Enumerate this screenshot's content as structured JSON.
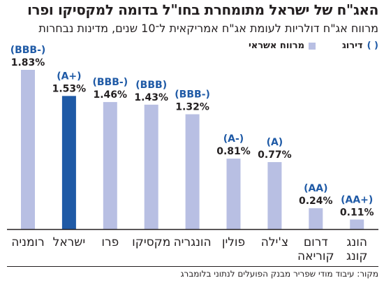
{
  "title": "האג\"ח של ישראל מתומחרת בחו\"ל בדומה למקסיקו ופרו",
  "subtitle": "מרווח אג\"ח דולריות לעומת אג\"ח אמריקאית ל־10 שנים, מדינות נבחרות",
  "legend": {
    "rating_paren": "( )",
    "rating_label": "דירוג",
    "spread_label": "מרווח אשראי"
  },
  "source": "מקור: עיבוד מודי שפריר מבנק הפועלים לנתוני בלומברג",
  "colors": {
    "bar": "#b8bfe3",
    "highlight": "#1f5aa6",
    "rating_text": "#1f5aa6",
    "text": "#231f20",
    "axis": "#231f20"
  },
  "chart_data": {
    "type": "bar",
    "categories": [
      "רומניה",
      "ישראל",
      "פרו",
      "מקסיקו",
      "הונגריה",
      "פולין",
      "צ'ילה",
      "דרום קוריאה",
      "הונג קונג"
    ],
    "values": [
      1.83,
      1.53,
      1.46,
      1.43,
      1.32,
      0.81,
      0.77,
      0.24,
      0.11
    ],
    "value_labels": [
      "1.83%",
      "1.53%",
      "1.46%",
      "1.43%",
      "1.32%",
      "0.81%",
      "0.77%",
      "0.24%",
      "0.11%"
    ],
    "ratings": [
      "(BBB-)",
      "(A+)",
      "(BBB-)",
      "(BBB)",
      "(BBB-)",
      "(A-)",
      "(A)",
      "(AA)",
      "(AA+)"
    ],
    "highlight": "ישראל",
    "unit": "%",
    "ylim": [
      0,
      1.83
    ],
    "grid": false,
    "legend_position": "top-right"
  }
}
